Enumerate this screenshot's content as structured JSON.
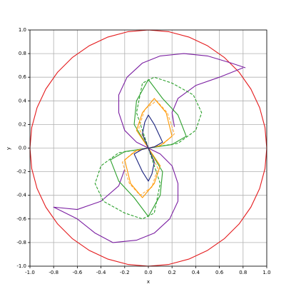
{
  "chart_data": {
    "type": "line",
    "x_label": "x",
    "y_label": "y",
    "xlim": [
      -1,
      1
    ],
    "ylim": [
      -1,
      1
    ],
    "xticks": [
      {
        "value": -1,
        "label": "-1.0"
      },
      -0.8,
      -0.6,
      -0.4,
      -0.2,
      {
        "value": 0,
        "label": "0.0"
      },
      0.2,
      0.4,
      0.6,
      0.8,
      {
        "value": 1,
        "label": "1.0"
      }
    ],
    "yticks": [
      {
        "value": -1,
        "label": "-1.0"
      },
      -0.8,
      -0.6,
      -0.4,
      -0.2,
      {
        "value": 0,
        "label": "0.0"
      },
      0.2,
      0.4,
      0.6,
      0.8,
      {
        "value": 1,
        "label": "1.0"
      }
    ],
    "grid": true,
    "series": [
      {
        "color": "#e41a1c",
        "linestyle": "solid",
        "x": [
          1,
          0.985,
          0.94,
          0.866,
          0.766,
          0.643,
          0.5,
          0.342,
          0.174,
          0,
          -0.174,
          -0.342,
          -0.5,
          -0.643,
          -0.766,
          -0.866,
          -0.94,
          -0.985,
          -1,
          -0.985,
          -0.94,
          -0.866,
          -0.766,
          -0.643,
          -0.5,
          -0.342,
          -0.174,
          0,
          0.174,
          0.342,
          0.5,
          0.643,
          0.766,
          0.866,
          0.94,
          0.985,
          1
        ],
        "values": [
          0,
          0.174,
          0.342,
          0.5,
          0.643,
          0.766,
          0.866,
          0.94,
          0.985,
          1,
          0.985,
          0.94,
          0.866,
          0.766,
          0.643,
          0.5,
          0.342,
          0.174,
          0,
          -0.174,
          -0.342,
          -0.5,
          -0.643,
          -0.766,
          -0.866,
          -0.94,
          -0.985,
          -1,
          -0.985,
          -0.94,
          -0.866,
          -0.766,
          -0.643,
          -0.5,
          -0.342,
          -0.174,
          0
        ]
      },
      {
        "color": "#7b1fa2",
        "linestyle": "solid",
        "x": [
          0.82,
          0.7,
          0.5,
          0.3,
          0.1,
          -0.05,
          -0.18,
          -0.25,
          -0.25,
          -0.2,
          -0.1,
          0,
          0.1,
          0.2,
          0.25,
          0.25,
          0.18,
          0.05,
          -0.1,
          -0.3,
          -0.45,
          -0.6,
          -0.8,
          -0.6,
          -0.4,
          -0.25,
          -0.2,
          null,
          0.8,
          0.6,
          0.4,
          0.25,
          0.2,
          0.22
        ],
        "values": [
          0.68,
          0.72,
          0.78,
          0.8,
          0.78,
          0.72,
          0.6,
          0.45,
          0.3,
          0.15,
          0.05,
          0,
          -0.05,
          -0.15,
          -0.3,
          -0.45,
          -0.6,
          -0.72,
          -0.78,
          -0.8,
          -0.72,
          -0.6,
          -0.5,
          -0.52,
          -0.45,
          -0.32,
          -0.18,
          null,
          0.68,
          0.6,
          0.53,
          0.42,
          0.3,
          0.18
        ]
      },
      {
        "color": "#2ca02c",
        "linestyle": "dashed",
        "x": [
          0,
          -0.1,
          -0.05,
          0.05,
          0.2,
          0.38,
          0.45,
          0.4,
          0.25,
          0,
          0.1,
          0.05,
          -0.05,
          -0.2,
          -0.38,
          -0.45,
          -0.4,
          -0.25,
          0
        ],
        "values": [
          0,
          0.3,
          0.55,
          0.6,
          0.55,
          0.45,
          0.3,
          0.15,
          0.04,
          0,
          -0.3,
          -0.55,
          -0.6,
          -0.55,
          -0.45,
          -0.3,
          -0.15,
          -0.04,
          0
        ]
      },
      {
        "color": "#2ca02c",
        "linestyle": "solid",
        "x": [
          0,
          -0.12,
          -0.1,
          0,
          0.12,
          0.25,
          0.32,
          0.2,
          0,
          0.12,
          0.1,
          0,
          -0.12,
          -0.25,
          -0.32,
          -0.2,
          0
        ],
        "values": [
          0,
          0.2,
          0.4,
          0.58,
          0.42,
          0.28,
          0.1,
          0.03,
          0,
          -0.2,
          -0.4,
          -0.58,
          -0.42,
          -0.28,
          -0.1,
          -0.03,
          0
        ]
      },
      {
        "color": "#ffae42",
        "linestyle": "dashed",
        "x": [
          0,
          -0.08,
          -0.03,
          0.07,
          0.16,
          0.22,
          0.12,
          0,
          0.08,
          0.03,
          -0.07,
          -0.16,
          -0.22,
          -0.12,
          0
        ],
        "values": [
          0,
          0.17,
          0.33,
          0.4,
          0.3,
          0.12,
          0.03,
          0,
          -0.17,
          -0.33,
          -0.4,
          -0.3,
          -0.12,
          -0.03,
          0
        ]
      },
      {
        "color": "#ff9800",
        "linestyle": "solid",
        "x": [
          0,
          -0.1,
          -0.05,
          0.05,
          0.15,
          0.2,
          0.1,
          0,
          0.1,
          0.05,
          -0.05,
          -0.15,
          -0.2,
          -0.1,
          0
        ],
        "values": [
          0,
          0.15,
          0.3,
          0.42,
          0.3,
          0.1,
          0.02,
          0,
          -0.15,
          -0.3,
          -0.42,
          -0.3,
          -0.1,
          -0.02,
          0
        ]
      },
      {
        "color": "#1a237e",
        "linestyle": "solid",
        "x": [
          0,
          -0.05,
          -0.03,
          0,
          0.05,
          0.12,
          0.05,
          0,
          0.05,
          0.03,
          0,
          -0.05,
          -0.12,
          -0.05,
          0
        ],
        "values": [
          0,
          0.12,
          0.22,
          0.28,
          0.2,
          0.05,
          0.01,
          0,
          -0.12,
          -0.22,
          -0.28,
          -0.2,
          -0.05,
          -0.01,
          0
        ]
      }
    ]
  }
}
